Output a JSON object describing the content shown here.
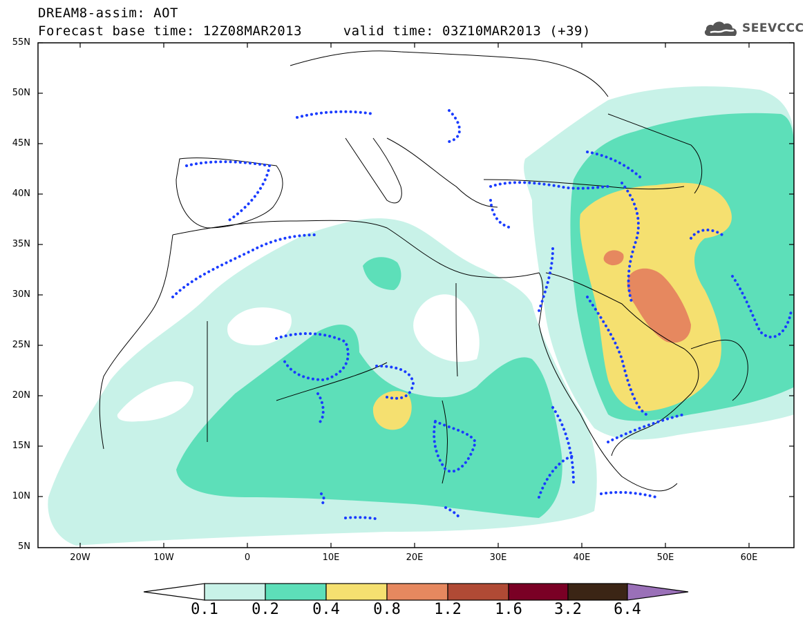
{
  "header": {
    "line1": "DREAM8-assim: AOT",
    "line2": "Forecast base time: 12Z08MAR2013     valid time: 03Z10MAR2013 (+39)"
  },
  "logo": {
    "icon": "cloud-icon",
    "text": "SEEVCCC"
  },
  "map": {
    "lon_range": [
      -25,
      65
    ],
    "lat_range": [
      5,
      55
    ],
    "lat_labels": [
      "55N",
      "50N",
      "45N",
      "40N",
      "35N",
      "30N",
      "25N",
      "20N",
      "15N",
      "10N",
      "5N"
    ],
    "lon_labels": [
      "20W",
      "10W",
      "0",
      "10E",
      "20E",
      "30E",
      "40E",
      "50E",
      "60E"
    ]
  },
  "colorbar": {
    "labels": [
      "0.1",
      "0.2",
      "0.4",
      "0.8",
      "1.2",
      "1.6",
      "3.2",
      "6.4"
    ],
    "colors": [
      "#ffffff",
      "#c8f2e8",
      "#5ddfb9",
      "#f5e070",
      "#e6885f",
      "#b04a35",
      "#7a0025",
      "#3b2515",
      "#9a70b8"
    ]
  },
  "legend_colors": {
    "level_0_1": "#c8f2e8",
    "level_0_2": "#5ddfb9",
    "level_0_4": "#f5e070",
    "level_0_8": "#e6885f",
    "level_1_2": "#b04a35",
    "dots": "#1a3cff"
  }
}
